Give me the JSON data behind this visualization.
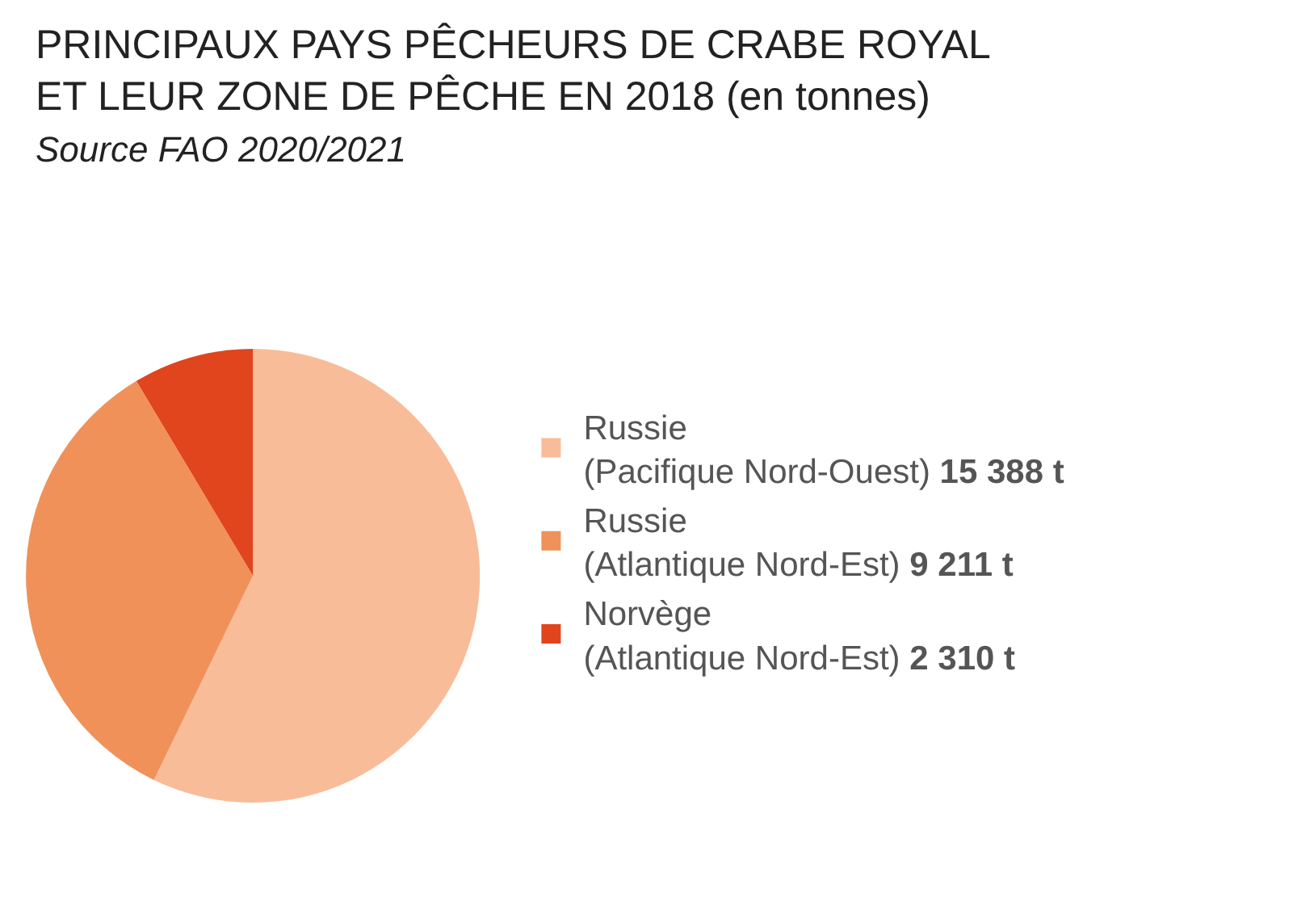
{
  "chart_data": {
    "type": "pie",
    "title": "PRINCIPAUX PAYS PÊCHEURS DE CRABE ROYAL ET LEUR ZONE DE PÊCHE EN 2018 (en tonnes)",
    "subtitle": "Source FAO 2020/2021",
    "categories": [
      "Russie (Pacifique Nord-Ouest)",
      "Russie (Atlantique Nord-Est)",
      "Norvège (Atlantique Nord-Est)"
    ],
    "values": [
      15388,
      9211,
      2310
    ],
    "value_labels": [
      "15 388 t",
      "9 211 t",
      "2 310 t"
    ],
    "colors": [
      "#f9bc98",
      "#f0915a",
      "#e0451e"
    ],
    "legend": "right"
  }
}
